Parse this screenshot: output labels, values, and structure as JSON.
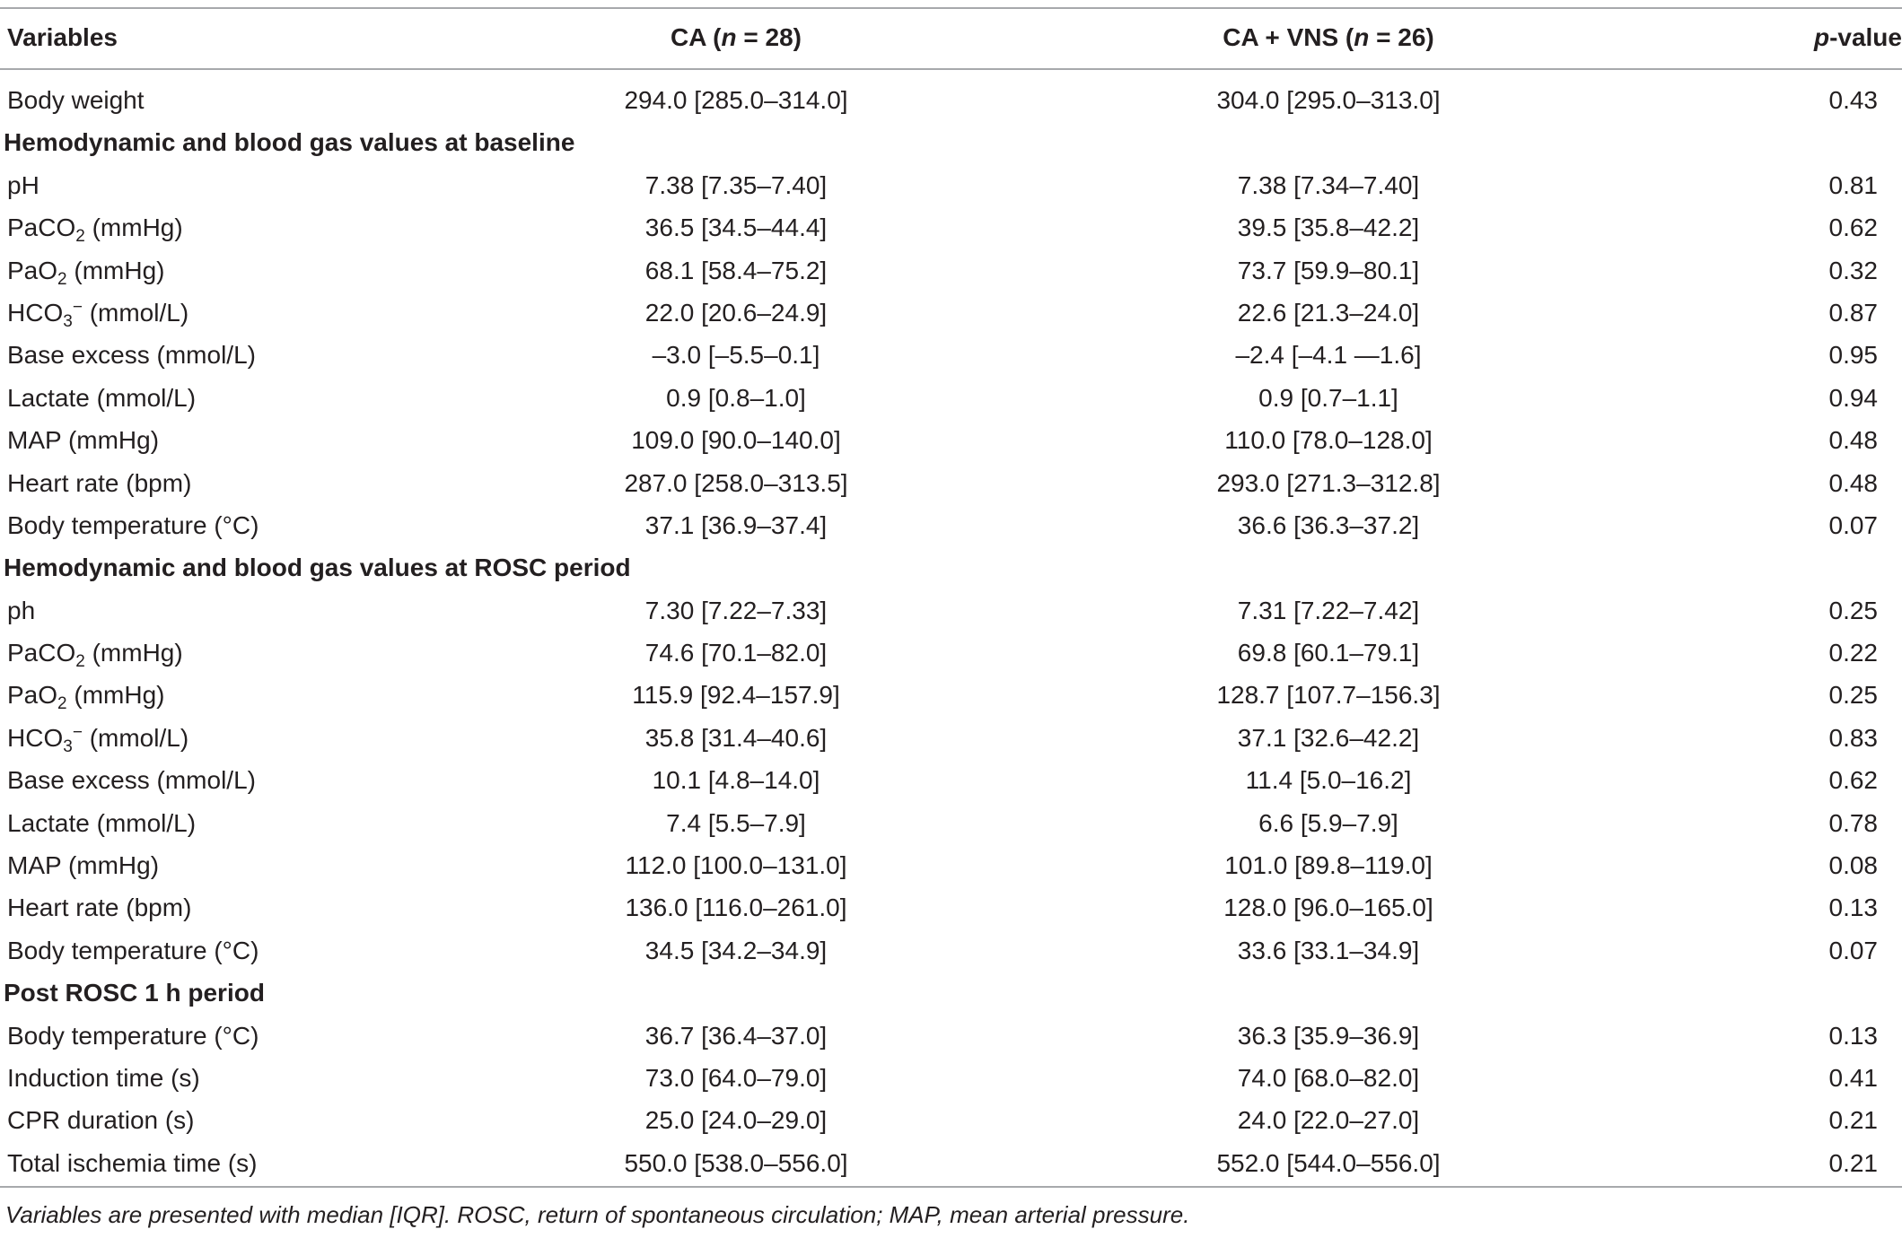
{
  "table": {
    "headers": {
      "variables": "Variables",
      "ca_prefix": "CA (",
      "ca_n": "n",
      "ca_suffix": " = 28)",
      "vns_prefix": "CA + VNS (",
      "vns_n": "n",
      "vns_suffix": " = 26)",
      "p_italic": "p",
      "p_rest": "-value"
    },
    "rows": [
      {
        "type": "data",
        "label": "Body weight",
        "ca": "294.0 [285.0–314.0]",
        "vns": "304.0 [295.0–313.0]",
        "p": "0.43"
      },
      {
        "type": "section",
        "label": "Hemodynamic and blood gas values at baseline"
      },
      {
        "type": "data",
        "label": "pH",
        "ca": "7.38 [7.35–7.40]",
        "vns": "7.38 [7.34–7.40]",
        "p": "0.81"
      },
      {
        "type": "data",
        "label_pre": "PaCO",
        "label_sub": "2",
        "label_post": " (mmHg)",
        "ca": "36.5 [34.5–44.4]",
        "vns": "39.5 [35.8–42.2]",
        "p": "0.62"
      },
      {
        "type": "data",
        "label_pre": "PaO",
        "label_sub": "2",
        "label_post": " (mmHg)",
        "ca": "68.1 [58.4–75.2]",
        "vns": "73.7 [59.9–80.1]",
        "p": "0.32"
      },
      {
        "type": "data",
        "label_pre": "HCO",
        "label_sub": "3",
        "label_sup": "−",
        "label_post": " (mmol/L)",
        "ca": "22.0 [20.6–24.9]",
        "vns": "22.6 [21.3–24.0]",
        "p": "0.87"
      },
      {
        "type": "data",
        "label": "Base excess (mmol/L)",
        "ca": "–3.0 [–5.5–0.1]",
        "vns": "–2.4 [–4.1 —1.6]",
        "p": "0.95"
      },
      {
        "type": "data",
        "label": "Lactate (mmol/L)",
        "ca": "0.9 [0.8–1.0]",
        "vns": "0.9 [0.7–1.1]",
        "p": "0.94"
      },
      {
        "type": "data",
        "label": "MAP (mmHg)",
        "ca": "109.0 [90.0–140.0]",
        "vns": "110.0 [78.0–128.0]",
        "p": "0.48"
      },
      {
        "type": "data",
        "label": "Heart rate (bpm)",
        "ca": "287.0 [258.0–313.5]",
        "vns": "293.0 [271.3–312.8]",
        "p": "0.48"
      },
      {
        "type": "data",
        "label": "Body temperature (°C)",
        "ca": "37.1 [36.9–37.4]",
        "vns": "36.6 [36.3–37.2]",
        "p": "0.07"
      },
      {
        "type": "section",
        "label": "Hemodynamic and blood gas values at ROSC period"
      },
      {
        "type": "data",
        "label": "ph",
        "ca": "7.30 [7.22–7.33]",
        "vns": "7.31 [7.22–7.42]",
        "p": "0.25"
      },
      {
        "type": "data",
        "label_pre": "PaCO",
        "label_sub": "2",
        "label_post": " (mmHg)",
        "ca": "74.6 [70.1–82.0]",
        "vns": "69.8 [60.1–79.1]",
        "p": "0.22"
      },
      {
        "type": "data",
        "label_pre": "PaO",
        "label_sub": "2",
        "label_post": " (mmHg)",
        "ca": "115.9 [92.4–157.9]",
        "vns": "128.7 [107.7–156.3]",
        "p": "0.25"
      },
      {
        "type": "data",
        "label_pre": "HCO",
        "label_sub": "3",
        "label_sup": "−",
        "label_post": " (mmol/L)",
        "ca": "35.8 [31.4–40.6]",
        "vns": "37.1 [32.6–42.2]",
        "p": "0.83"
      },
      {
        "type": "data",
        "label": "Base excess (mmol/L)",
        "ca": "10.1 [4.8–14.0]",
        "vns": "11.4 [5.0–16.2]",
        "p": "0.62"
      },
      {
        "type": "data",
        "label": "Lactate (mmol/L)",
        "ca": "7.4 [5.5–7.9]",
        "vns": "6.6 [5.9–7.9]",
        "p": "0.78"
      },
      {
        "type": "data",
        "label": "MAP (mmHg)",
        "ca": "112.0 [100.0–131.0]",
        "vns": "101.0 [89.8–119.0]",
        "p": "0.08"
      },
      {
        "type": "data",
        "label": "Heart rate (bpm)",
        "ca": "136.0 [116.0–261.0]",
        "vns": "128.0 [96.0–165.0]",
        "p": "0.13"
      },
      {
        "type": "data",
        "label": "Body temperature (°C)",
        "ca": "34.5 [34.2–34.9]",
        "vns": "33.6 [33.1–34.9]",
        "p": "0.07"
      },
      {
        "type": "section",
        "label": "Post ROSC 1 h period"
      },
      {
        "type": "data",
        "label": "Body temperature (°C)",
        "ca": "36.7 [36.4–37.0]",
        "vns": "36.3 [35.9–36.9]",
        "p": "0.13"
      },
      {
        "type": "data",
        "label": "Induction time (s)",
        "ca": "73.0 [64.0–79.0]",
        "vns": "74.0 [68.0–82.0]",
        "p": "0.41"
      },
      {
        "type": "data",
        "label": "CPR duration (s)",
        "ca": "25.0 [24.0–29.0]",
        "vns": "24.0 [22.0–27.0]",
        "p": "0.21"
      },
      {
        "type": "data",
        "label": "Total ischemia time (s)",
        "ca": "550.0 [538.0–556.0]",
        "vns": "552.0 [544.0–556.0]",
        "p": "0.21"
      }
    ],
    "footnote": "Variables are presented with median [IQR]. ROSC, return of spontaneous circulation; MAP, mean arterial pressure."
  }
}
